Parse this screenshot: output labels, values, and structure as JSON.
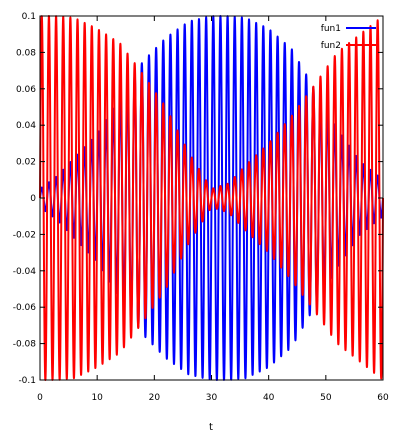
{
  "chart_data": {
    "type": "line",
    "title": "",
    "xlabel": "t",
    "ylabel": "",
    "xlim": [
      0,
      60
    ],
    "ylim": [
      -0.1,
      0.1
    ],
    "x_ticks": [
      0,
      10,
      20,
      30,
      40,
      50,
      60
    ],
    "x_tick_labels": [
      "0",
      "10",
      "20",
      "30",
      "40",
      "50",
      "60"
    ],
    "y_ticks": [
      -0.1,
      -0.08,
      -0.06,
      -0.04,
      -0.02,
      0,
      0.02,
      0.04,
      0.06,
      0.08,
      0.1
    ],
    "y_tick_labels": [
      "-0.1",
      "-0.08",
      "-0.06",
      "-0.04",
      "-0.02",
      "0",
      "0.02",
      "0.04",
      "0.06",
      "0.08",
      "0.1"
    ],
    "grid": false,
    "legend_position": "top-right",
    "oscillation_period": 1.25,
    "series": [
      {
        "name": "fun1",
        "color": "#0000ff",
        "envelope_t": [
          0,
          3,
          6,
          10,
          14,
          18,
          22,
          26,
          30,
          33,
          36,
          40,
          44,
          48,
          52,
          56,
          60
        ],
        "envelope_amplitude": [
          0.005,
          0.012,
          0.022,
          0.035,
          0.055,
          0.075,
          0.088,
          0.097,
          0.1,
          0.1,
          0.099,
          0.093,
          0.082,
          0.06,
          0.038,
          0.02,
          0.01
        ]
      },
      {
        "name": "fun2",
        "color": "#ff0000",
        "envelope_t": [
          0,
          3,
          6,
          10,
          14,
          18,
          22,
          26,
          30,
          33,
          36,
          40,
          44,
          48,
          52,
          56,
          60
        ],
        "envelope_amplitude": [
          0.1,
          0.1,
          0.099,
          0.093,
          0.085,
          0.068,
          0.05,
          0.025,
          0.005,
          0.008,
          0.018,
          0.03,
          0.045,
          0.062,
          0.08,
          0.09,
          0.1
        ]
      }
    ]
  }
}
